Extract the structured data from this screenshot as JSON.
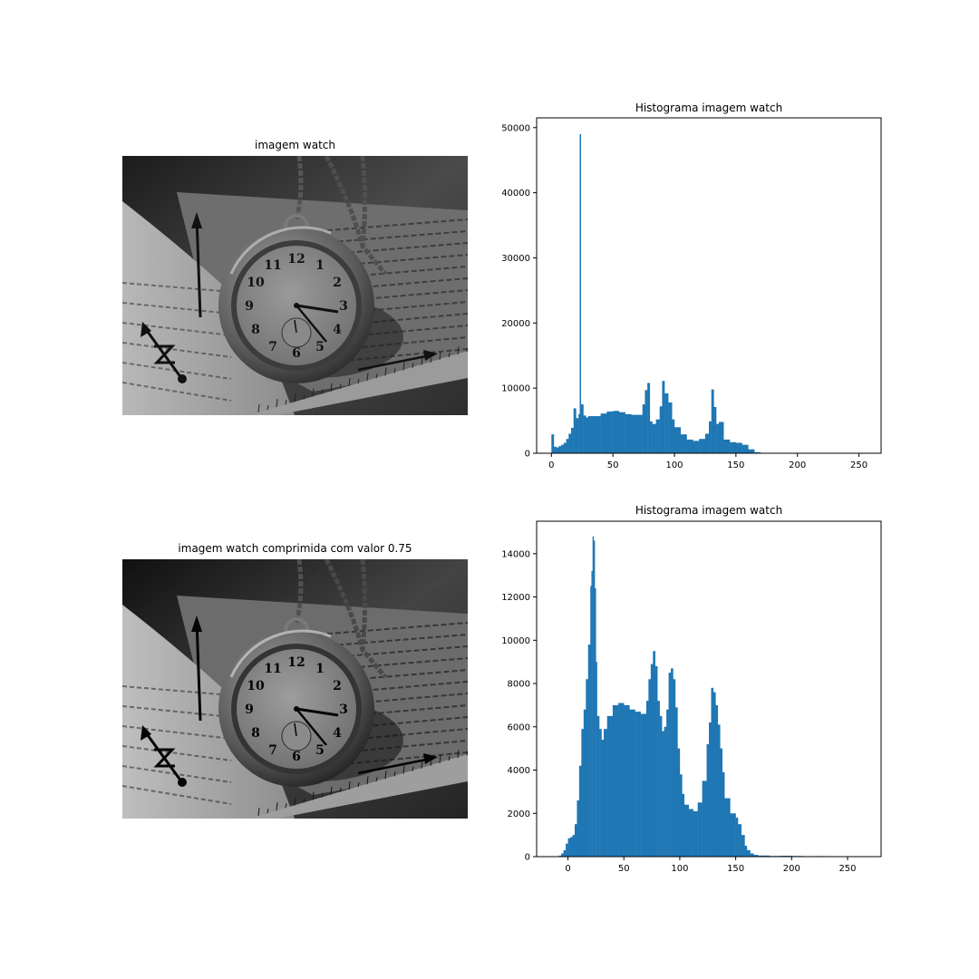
{
  "panels": {
    "img1_title": "imagem watch",
    "img2_title": "imagem watch comprimida com valor 0.75"
  },
  "photo_scene": {
    "subject": "pocket watch on open book with ruler",
    "dial_numerals": [
      "12",
      "1",
      "2",
      "3",
      "4",
      "5",
      "6",
      "7",
      "8",
      "9",
      "10",
      "11"
    ]
  },
  "colors": {
    "bar": "#1f77b4",
    "axes": "#000000"
  },
  "chart_data": [
    {
      "type": "bar",
      "title": "Histograma imagem watch",
      "xlabel": "",
      "ylabel": "",
      "xlim": [
        -12,
        268
      ],
      "ylim": [
        0,
        51500
      ],
      "xticks": [
        0,
        50,
        100,
        150,
        200,
        250
      ],
      "yticks": [
        0,
        10000,
        20000,
        30000,
        40000,
        50000
      ],
      "x": [
        0,
        2,
        4,
        6,
        8,
        10,
        12,
        14,
        16,
        18,
        20,
        22,
        23,
        24,
        26,
        28,
        30,
        35,
        40,
        45,
        50,
        55,
        60,
        65,
        70,
        74,
        76,
        78,
        80,
        82,
        85,
        88,
        90,
        92,
        95,
        98,
        100,
        105,
        110,
        115,
        120,
        125,
        128,
        130,
        132,
        134,
        136,
        140,
        145,
        150,
        155,
        160,
        165,
        170,
        175
      ],
      "values": [
        2900,
        1000,
        900,
        1100,
        1300,
        1600,
        2200,
        3000,
        3900,
        6900,
        5400,
        6000,
        49000,
        7500,
        5800,
        5500,
        5700,
        5700,
        6100,
        6400,
        6500,
        6300,
        6000,
        5900,
        5900,
        7500,
        9700,
        10800,
        4900,
        4500,
        5200,
        7200,
        11100,
        9200,
        7800,
        5200,
        4000,
        2900,
        2100,
        1900,
        2200,
        3000,
        4900,
        9800,
        7100,
        4500,
        4800,
        2100,
        1700,
        1600,
        1300,
        600,
        150,
        0,
        0
      ]
    },
    {
      "type": "bar",
      "title": "Histograma imagem watch",
      "xlabel": "",
      "ylabel": "",
      "xlim": [
        -28,
        280
      ],
      "ylim": [
        0,
        15500
      ],
      "xticks": [
        0,
        50,
        100,
        150,
        200,
        250
      ],
      "yticks": [
        0,
        2000,
        4000,
        6000,
        8000,
        10000,
        12000,
        14000
      ],
      "x": [
        -10,
        -8,
        -6,
        -4,
        -2,
        0,
        2,
        4,
        6,
        8,
        10,
        12,
        14,
        16,
        18,
        20,
        21,
        22,
        23,
        24,
        25,
        26,
        28,
        30,
        32,
        35,
        40,
        45,
        50,
        55,
        60,
        65,
        70,
        72,
        74,
        76,
        78,
        80,
        82,
        84,
        86,
        88,
        90,
        92,
        94,
        96,
        98,
        100,
        102,
        104,
        108,
        112,
        116,
        120,
        124,
        126,
        128,
        130,
        132,
        134,
        136,
        138,
        140,
        145,
        150,
        152,
        155,
        158,
        160,
        163,
        166,
        170,
        180,
        190,
        200,
        210,
        220,
        230,
        240,
        250,
        255
      ],
      "values": [
        20,
        50,
        150,
        300,
        600,
        850,
        900,
        1000,
        1500,
        2600,
        4200,
        5900,
        6800,
        8200,
        9800,
        12500,
        13200,
        14800,
        14600,
        12400,
        9000,
        6500,
        5900,
        5400,
        5900,
        6500,
        7000,
        7100,
        7000,
        6800,
        6700,
        6600,
        7200,
        8200,
        8900,
        9500,
        8800,
        7200,
        6500,
        5800,
        6000,
        6800,
        8500,
        8700,
        8200,
        6900,
        5000,
        3800,
        2900,
        2400,
        2200,
        2100,
        2500,
        3500,
        5200,
        6200,
        7800,
        7600,
        7000,
        6100,
        5000,
        3900,
        2700,
        2000,
        1800,
        1500,
        1000,
        500,
        300,
        150,
        80,
        50,
        30,
        40,
        30,
        20,
        25,
        15,
        10,
        20,
        15
      ]
    }
  ]
}
